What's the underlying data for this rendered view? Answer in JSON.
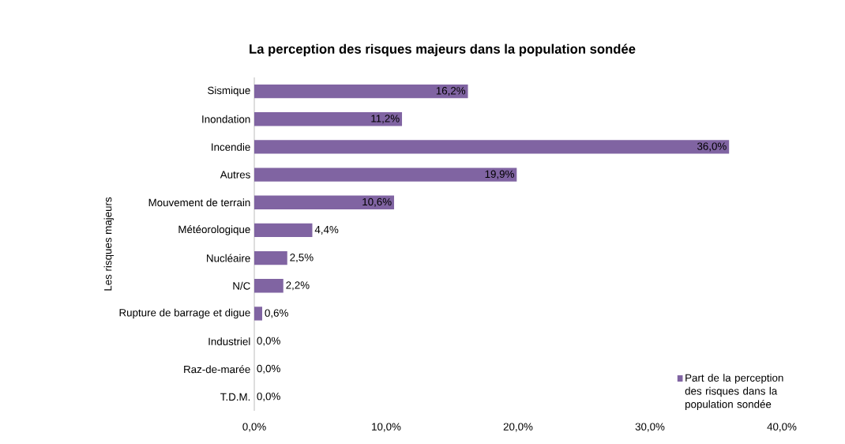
{
  "chart_data": {
    "type": "bar",
    "orientation": "horizontal",
    "title": "La perception des risques majeurs dans la population sondée",
    "ylabel": "Les risques majeurs",
    "categories": [
      "Sismique",
      "Inondation",
      "Incendie",
      "Autres",
      "Mouvement de terrain",
      "Météorologique",
      "Nucléaire",
      "N/C",
      "Rupture de barrage et digue",
      "Industriel",
      "Raz-de-marée",
      "T.D.M."
    ],
    "series": [
      {
        "name": "Part de la perception des risques dans la population sondée",
        "color": "#8064a2",
        "values": [
          16.2,
          11.2,
          36.0,
          19.9,
          10.6,
          4.4,
          2.5,
          2.2,
          0.6,
          0.0,
          0.0,
          0.0
        ],
        "value_labels": [
          "16,2%",
          "11,2%",
          "36,0%",
          "19,9%",
          "10,6%",
          "4,4%",
          "2,5%",
          "2,2%",
          "0,6%",
          "0,0%",
          "0,0%",
          "0,0%"
        ]
      }
    ],
    "xlim": [
      0,
      40
    ],
    "xticks": [
      {
        "value": 0,
        "label": "0,0%"
      },
      {
        "value": 10,
        "label": "10,0%"
      },
      {
        "value": 20,
        "label": "20,0%"
      },
      {
        "value": 30,
        "label": "30,0%"
      },
      {
        "value": 40,
        "label": "40,0%"
      }
    ],
    "legend": "bottom right"
  }
}
